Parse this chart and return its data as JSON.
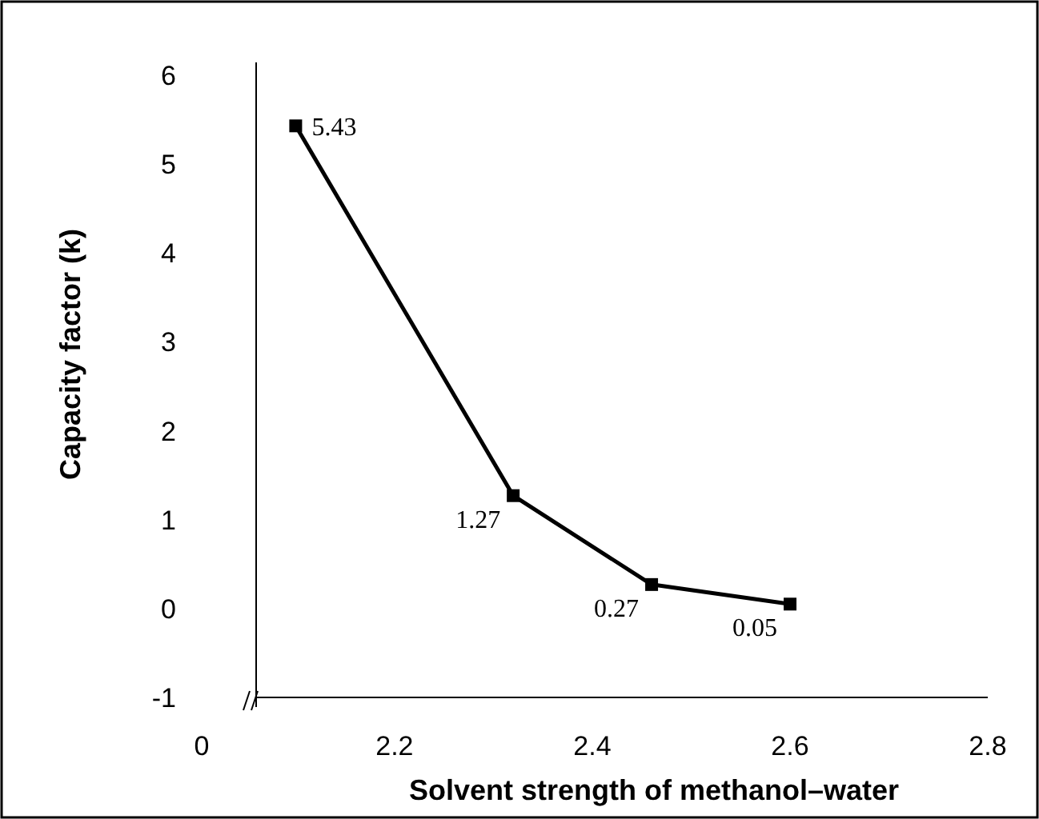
{
  "chart_data": {
    "type": "line",
    "xlabel": "Solvent strength of methanol–water",
    "ylabel": "Capacity factor (k)",
    "x": [
      2.1,
      2.32,
      2.46,
      2.6
    ],
    "series": [
      {
        "color": "#000000",
        "values": [
          5.43,
          1.27,
          0.27,
          0.05
        ],
        "value_labels": [
          "5.43",
          "1.27",
          "0.27",
          "0.05"
        ]
      }
    ],
    "xlim": [
      2.06,
      2.8
    ],
    "xticks": [
      2.2,
      2.4,
      2.6,
      2.8
    ],
    "ylim": [
      -1,
      6
    ],
    "yticks": [
      -1,
      0,
      1,
      2,
      3,
      4,
      5,
      6
    ],
    "annotations": [
      "0"
    ],
    "marker": "square",
    "line_style": "solid",
    "grid": false
  }
}
